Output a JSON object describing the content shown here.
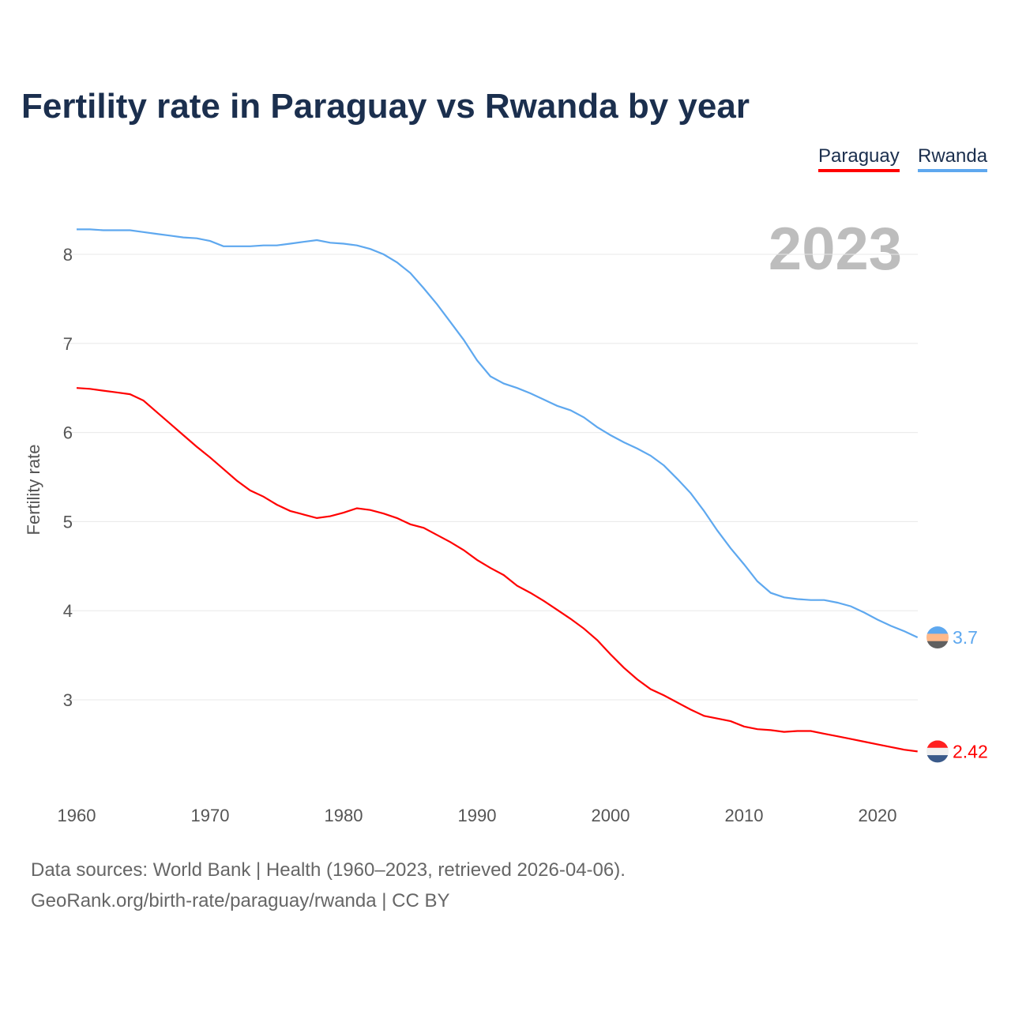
{
  "chart_data": {
    "type": "line",
    "title": "Fertility rate in Paraguay vs Rwanda by year",
    "ylabel": "Fertility rate",
    "xlabel": "",
    "year_label": "2023",
    "xlim": [
      1960,
      2023
    ],
    "ylim": [
      2.2,
      8.4
    ],
    "xticks": [
      1960,
      1970,
      1980,
      1990,
      2000,
      2010,
      2020
    ],
    "yticks": [
      3,
      4,
      5,
      6,
      7,
      8
    ],
    "grid": true,
    "legend": "top-right",
    "x": [
      1960,
      1961,
      1962,
      1963,
      1964,
      1965,
      1966,
      1967,
      1968,
      1969,
      1970,
      1971,
      1972,
      1973,
      1974,
      1975,
      1976,
      1977,
      1978,
      1979,
      1980,
      1981,
      1982,
      1983,
      1984,
      1985,
      1986,
      1987,
      1988,
      1989,
      1990,
      1991,
      1992,
      1993,
      1994,
      1995,
      1996,
      1997,
      1998,
      1999,
      2000,
      2001,
      2002,
      2003,
      2004,
      2005,
      2006,
      2007,
      2008,
      2009,
      2010,
      2011,
      2012,
      2013,
      2014,
      2015,
      2016,
      2017,
      2018,
      2019,
      2020,
      2021,
      2022,
      2023
    ],
    "series": [
      {
        "name": "Paraguay",
        "color": "#ff0000",
        "end_label": "2.42",
        "values": [
          6.5,
          6.49,
          6.47,
          6.45,
          6.43,
          6.36,
          6.23,
          6.1,
          5.97,
          5.84,
          5.72,
          5.59,
          5.46,
          5.35,
          5.28,
          5.19,
          5.12,
          5.08,
          5.04,
          5.06,
          5.1,
          5.15,
          5.13,
          5.09,
          5.04,
          4.97,
          4.93,
          4.85,
          4.77,
          4.68,
          4.57,
          4.48,
          4.4,
          4.28,
          4.2,
          4.11,
          4.01,
          3.91,
          3.8,
          3.67,
          3.51,
          3.36,
          3.23,
          3.12,
          3.05,
          2.97,
          2.89,
          2.82,
          2.79,
          2.76,
          2.7,
          2.67,
          2.66,
          2.64,
          2.65,
          2.65,
          2.62,
          2.59,
          2.56,
          2.53,
          2.5,
          2.47,
          2.44,
          2.42
        ]
      },
      {
        "name": "Rwanda",
        "color": "#5ea8ef",
        "end_label": "3.7",
        "values": [
          8.28,
          8.28,
          8.27,
          8.27,
          8.27,
          8.25,
          8.23,
          8.21,
          8.19,
          8.18,
          8.15,
          8.09,
          8.09,
          8.09,
          8.1,
          8.1,
          8.12,
          8.14,
          8.16,
          8.13,
          8.12,
          8.1,
          8.06,
          8.0,
          7.91,
          7.79,
          7.62,
          7.44,
          7.24,
          7.04,
          6.81,
          6.63,
          6.55,
          6.5,
          6.44,
          6.37,
          6.3,
          6.25,
          6.17,
          6.06,
          5.97,
          5.89,
          5.82,
          5.74,
          5.63,
          5.48,
          5.32,
          5.12,
          4.9,
          4.7,
          4.52,
          4.33,
          4.2,
          4.15,
          4.13,
          4.12,
          4.12,
          4.09,
          4.05,
          3.98,
          3.9,
          3.83,
          3.77,
          3.7
        ]
      }
    ]
  },
  "footer": {
    "line1": "Data sources: World Bank | Health (1960–2023, retrieved 2026-04-06).",
    "line2": "GeoRank.org/birth-rate/paraguay/rwanda | CC BY"
  }
}
